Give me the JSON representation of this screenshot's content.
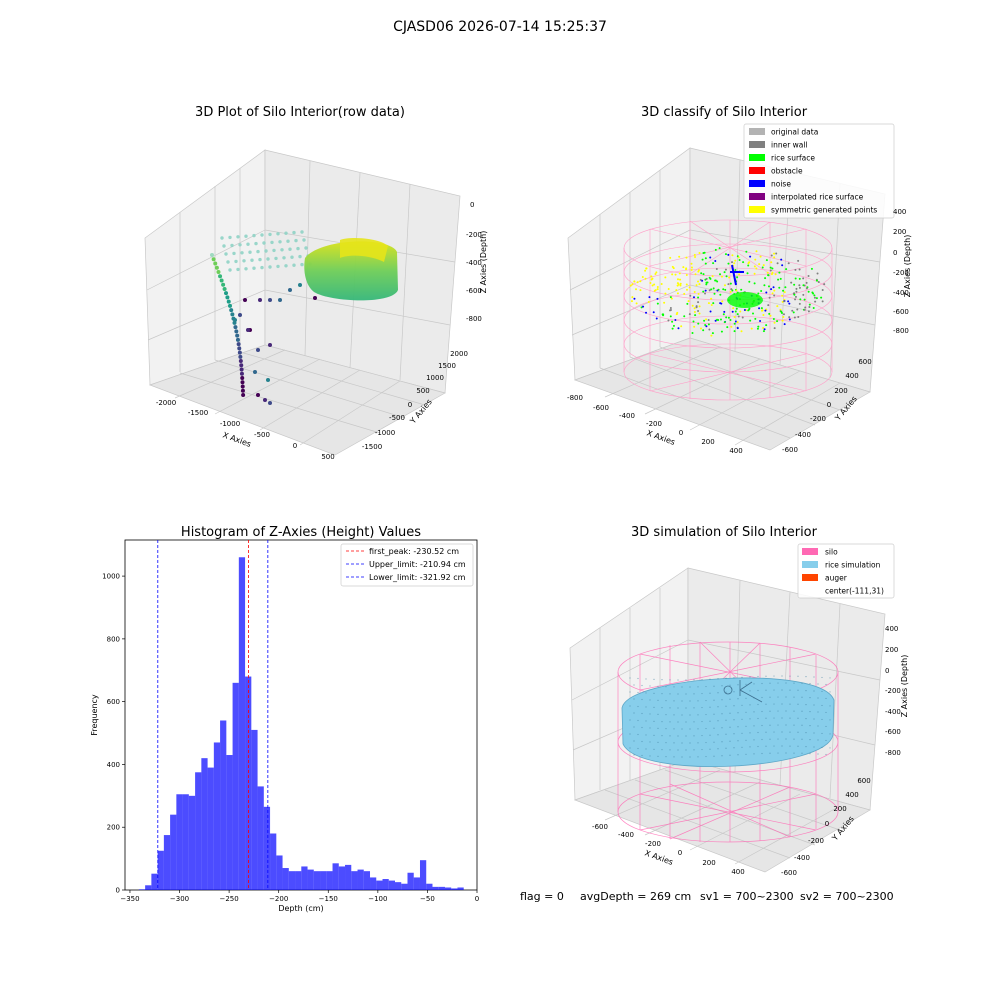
{
  "figure": {
    "suptitle": "CJASD06 2026-07-14 15:25:37",
    "footer": {
      "flag": "flag = 0",
      "avg_depth": "avgDepth = 269 cm",
      "sv1": "sv1 = 700~2300",
      "sv2": "sv2 = 700~2300"
    }
  },
  "panels": {
    "raw": {
      "title": "3D Plot of Silo Interior(row data)",
      "xlabel": "X Axies",
      "ylabel": "Y Axies",
      "zlabel": "Z Axies (Depth)",
      "xticks": [
        "-2000",
        "-1500",
        "-1000",
        "-500",
        "0",
        "500"
      ],
      "yticks": [
        "-1500",
        "-1000",
        "-500",
        "0",
        "500",
        "1000",
        "1500",
        "2000"
      ],
      "zticks": [
        "0",
        "-200",
        "-400",
        "-600",
        "-800"
      ]
    },
    "classify": {
      "title": "3D classify of Silo Interior",
      "xlabel": "X Axies",
      "ylabel": "Y Axies",
      "zlabel": "Z Axies (Depth)",
      "xticks": [
        "-800",
        "-600",
        "-400",
        "-200",
        "0",
        "200",
        "400"
      ],
      "yticks": [
        "-600",
        "-400",
        "-200",
        "0",
        "200",
        "400",
        "600"
      ],
      "zticks": [
        "400",
        "200",
        "0",
        "-200",
        "-400",
        "-600",
        "-800"
      ],
      "legend": [
        {
          "label": "original data",
          "color": "#b3b3b3"
        },
        {
          "label": "inner wall",
          "color": "#808080"
        },
        {
          "label": "rice surface",
          "color": "#00ff00"
        },
        {
          "label": "obstacle",
          "color": "#ff0000"
        },
        {
          "label": "noise",
          "color": "#0000ff"
        },
        {
          "label": "interpolated rice surface",
          "color": "#800080"
        },
        {
          "label": "symmetric generated points",
          "color": "#ffff00"
        }
      ]
    },
    "simulation": {
      "title": "3D simulation of Silo Interior",
      "xlabel": "X Axies",
      "ylabel": "Y Axies",
      "zlabel": "Z Axies (Depth)",
      "xticks": [
        "-600",
        "-400",
        "-200",
        "0",
        "200",
        "400"
      ],
      "yticks": [
        "-600",
        "-400",
        "-200",
        "0",
        "200",
        "400",
        "600"
      ],
      "zticks": [
        "400",
        "200",
        "0",
        "-200",
        "-400",
        "-600",
        "-800"
      ],
      "legend": [
        {
          "label": "silo",
          "color": "#ff69b4"
        },
        {
          "label": "rice simulation",
          "color": "#87ceeb"
        },
        {
          "label": "auger",
          "color": "#ff4500"
        },
        {
          "label": "center(-111,31)",
          "color": ""
        }
      ]
    }
  },
  "chart_data": {
    "type": "bar",
    "title": "Histogram of Z-Axies (Height) Values",
    "xlabel": "Depth (cm)",
    "ylabel": "Frequency",
    "xlim": [
      -355,
      0
    ],
    "ylim": [
      0,
      1115
    ],
    "xticks": [
      -350,
      -300,
      -250,
      -200,
      -150,
      -100,
      -50,
      0
    ],
    "yticks": [
      0,
      200,
      400,
      600,
      800,
      1000
    ],
    "bin_width": 6.3,
    "bar_color": "#0000ff",
    "bins": [
      [
        -341,
        2
      ],
      [
        -334.7,
        15
      ],
      [
        -328.4,
        52
      ],
      [
        -322.1,
        125
      ],
      [
        -315.8,
        175
      ],
      [
        -309.5,
        240
      ],
      [
        -303.2,
        305
      ],
      [
        -296.9,
        305
      ],
      [
        -290.6,
        300
      ],
      [
        -284.3,
        375
      ],
      [
        -278,
        420
      ],
      [
        -271.7,
        390
      ],
      [
        -265.4,
        470
      ],
      [
        -259.1,
        540
      ],
      [
        -252.8,
        430
      ],
      [
        -246.5,
        660
      ],
      [
        -240.2,
        1060
      ],
      [
        -233.9,
        680
      ],
      [
        -227.6,
        510
      ],
      [
        -221.3,
        330
      ],
      [
        -215,
        265
      ],
      [
        -208.7,
        180
      ],
      [
        -202.4,
        110
      ],
      [
        -196.1,
        70
      ],
      [
        -189.8,
        60
      ],
      [
        -183.5,
        60
      ],
      [
        -177.2,
        75
      ],
      [
        -170.9,
        65
      ],
      [
        -164.6,
        60
      ],
      [
        -158.3,
        60
      ],
      [
        -152,
        60
      ],
      [
        -145.7,
        85
      ],
      [
        -139.4,
        75
      ],
      [
        -133.1,
        80
      ],
      [
        -126.8,
        60
      ],
      [
        -120.5,
        65
      ],
      [
        -114.2,
        60
      ],
      [
        -107.9,
        40
      ],
      [
        -101.6,
        30
      ],
      [
        -95.3,
        35
      ],
      [
        -89,
        30
      ],
      [
        -82.7,
        25
      ],
      [
        -76.4,
        20
      ],
      [
        -70.1,
        55
      ],
      [
        -63.8,
        40
      ],
      [
        -57.5,
        95
      ],
      [
        -51.2,
        20
      ],
      [
        -44.9,
        10
      ],
      [
        -38.6,
        10
      ],
      [
        -32.3,
        8
      ],
      [
        -26,
        5
      ],
      [
        -19.7,
        8
      ]
    ],
    "vlines": [
      {
        "label": "first_peak: -230.52 cm",
        "value": -230.52,
        "color": "#ff0000"
      },
      {
        "label": "Upper_limit: -210.94 cm",
        "value": -210.94,
        "color": "#0000ff"
      },
      {
        "label": "Lower_limit: -321.92 cm",
        "value": -321.92,
        "color": "#0000ff"
      }
    ],
    "legend_position": "top-right",
    "grid": false
  }
}
